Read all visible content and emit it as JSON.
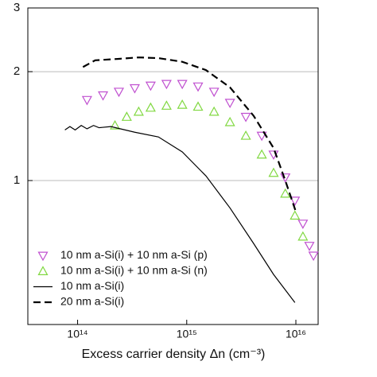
{
  "chart_data": {
    "type": "line",
    "x_label": "Excess carrier density Δn (cm⁻³)",
    "xscale": "log",
    "yscale": "log",
    "xlim": [
      35000000000000.0,
      1.6e+16
    ],
    "ylim": [
      0.4,
      3
    ],
    "xticks": [
      {
        "value": 100000000000000.0,
        "label": "10¹⁴"
      },
      {
        "value": 1000000000000000.0,
        "label": "10¹⁵"
      },
      {
        "value": 1e+16,
        "label": "10¹⁶"
      }
    ],
    "yticks": [
      1,
      2,
      3
    ],
    "grid": true,
    "legend": "lower left",
    "series": [
      {
        "name": "10 nm a-Si(i) + 10 nm a-Si (p)",
        "color": "#c050d0",
        "marker": "triangle-down",
        "x": [
          122000000000000.0,
          171000000000000.0,
          239000000000000.0,
          334000000000000.0,
          467000000000000.0,
          653000000000000.0,
          910000000000000.0,
          1270000000000000.0,
          1780000000000000.0,
          2490000000000000.0,
          3480000000000000.0,
          4870000000000000.0,
          6250000000000000.0,
          8000000000000000.0,
          9800000000000000.0,
          1.16e+16,
          1.33e+16,
          1.45e+16
        ],
        "values": [
          1.67,
          1.72,
          1.76,
          1.8,
          1.83,
          1.85,
          1.85,
          1.82,
          1.76,
          1.64,
          1.5,
          1.33,
          1.18,
          1.02,
          0.88,
          0.76,
          0.66,
          0.62
        ]
      },
      {
        "name": "10 nm a-Si(i) + 10 nm a-Si (n)",
        "color": "#80d840",
        "marker": "triangle-up",
        "x": [
          220000000000000.0,
          282000000000000.0,
          363000000000000.0,
          467000000000000.0,
          653000000000000.0,
          910000000000000.0,
          1270000000000000.0,
          1780000000000000.0,
          2490000000000000.0,
          3480000000000000.0,
          4870000000000000.0,
          6250000000000000.0,
          8000000000000000.0,
          9800000000000000.0,
          1.16e+16
        ],
        "values": [
          1.42,
          1.5,
          1.55,
          1.59,
          1.61,
          1.62,
          1.6,
          1.55,
          1.45,
          1.33,
          1.18,
          1.05,
          0.92,
          0.8,
          0.7
        ]
      },
      {
        "name": "10 nm a-Si(i)",
        "color": "#000000",
        "linestyle": "solid",
        "x": [
          76500000000000.0,
          85000000000000.0,
          95000000000000.0,
          108000000000000.0,
          122000000000000.0,
          140000000000000.0,
          157000000000000.0,
          202000000000000.0,
          334000000000000.0,
          550000000000000.0,
          910000000000000.0,
          1500000000000000.0,
          2490000000000000.0,
          4100000000000000.0,
          6250000000000000.0,
          9800000000000000.0
        ],
        "values": [
          1.38,
          1.41,
          1.38,
          1.42,
          1.39,
          1.42,
          1.4,
          1.41,
          1.36,
          1.32,
          1.2,
          1.03,
          0.84,
          0.67,
          0.55,
          0.46
        ]
      },
      {
        "name": "20 nm a-Si(i)",
        "color": "#000000",
        "linestyle": "dashed",
        "x": [
          112000000000000.0,
          145000000000000.0,
          239000000000000.0,
          363000000000000.0,
          550000000000000.0,
          910000000000000.0,
          1500000000000000.0,
          2490000000000000.0,
          4100000000000000.0,
          6250000000000000.0,
          8000000000000000.0,
          1e+16
        ],
        "values": [
          2.06,
          2.15,
          2.17,
          2.19,
          2.18,
          2.13,
          2.02,
          1.81,
          1.51,
          1.23,
          1.0,
          0.82
        ]
      }
    ]
  }
}
